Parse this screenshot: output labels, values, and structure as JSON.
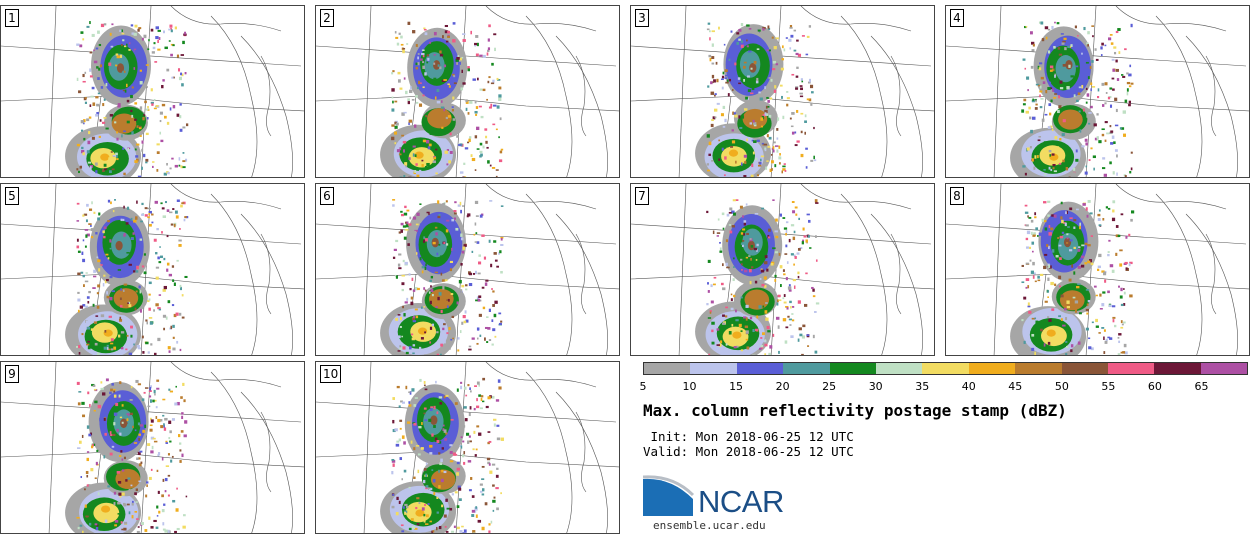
{
  "panels": [
    {
      "label": "1"
    },
    {
      "label": "2"
    },
    {
      "label": "3"
    },
    {
      "label": "4"
    },
    {
      "label": "5"
    },
    {
      "label": "6"
    },
    {
      "label": "7"
    },
    {
      "label": "8"
    },
    {
      "label": "9"
    },
    {
      "label": "10"
    }
  ],
  "colorbar": {
    "ticks": [
      "5",
      "10",
      "15",
      "20",
      "25",
      "30",
      "35",
      "40",
      "45",
      "50",
      "55",
      "60",
      "65"
    ],
    "colors": [
      "#a6a6a6",
      "#bcc4ec",
      "#5a5ed6",
      "#4f9a9e",
      "#14881f",
      "#bfe0c4",
      "#f2dc62",
      "#f0ad1e",
      "#ba7c2e",
      "#8a5538",
      "#ef5b86",
      "#6c1737",
      "#ad50a4"
    ]
  },
  "title": "Max. column reflectivity postage stamp (dBZ)",
  "init": " Init: Mon 2018-06-25 12 UTC",
  "valid": "Valid: Mon 2018-06-25 12 UTC",
  "logo": {
    "text": "NCAR",
    "colors": {
      "blue": "#1b6eb5",
      "gray": "#b8bec6"
    }
  },
  "site": "ensemble.ucar.edu"
}
